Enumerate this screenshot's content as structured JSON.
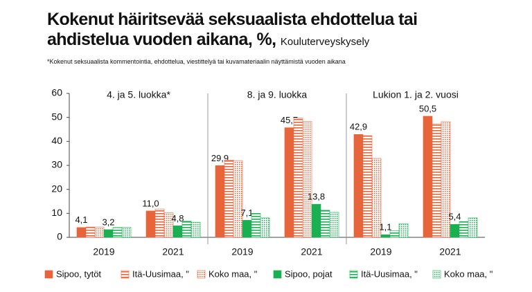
{
  "chart_data": {
    "type": "bar",
    "title": "Kokenut häiritsevää seksuaalista ehdottelua tai ahdistelua vuoden aikana, %,",
    "source": "Kouluterveyskysely",
    "note": "*Kokenut seksuaalista kommentointia, ehdottelua, viestittelyä tai kuvamateriaalin näyttämistä vuoden aikana",
    "groups": [
      "4. ja 5. luokka*",
      "8. ja 9. luokka",
      "Lukion 1. ja 2. vuosi"
    ],
    "categories": [
      "2019",
      "2021",
      "2019",
      "2021",
      "2019",
      "2021"
    ],
    "ylim": [
      0,
      60
    ],
    "yticks": [
      0,
      10,
      20,
      30,
      40,
      50,
      60
    ],
    "series": [
      {
        "name": "Sipoo, tytöt",
        "color": "#e8643a",
        "pattern": "solid",
        "values": [
          4.1,
          11.0,
          29.9,
          45.7,
          42.9,
          50.5
        ],
        "value_labels": [
          "4,1",
          "11,0",
          "29,9",
          "45,7",
          "42,9",
          "50,5"
        ]
      },
      {
        "name": "Itä-Uusimaa, \"",
        "color": "#e8643a",
        "pattern": "stripes",
        "values": [
          4.3,
          11.8,
          32.2,
          49.8,
          42.4,
          47.3
        ]
      },
      {
        "name": "Koko maa, \"",
        "color": "#e8643a",
        "pattern": "dots",
        "values": [
          4.3,
          10.2,
          32.0,
          48.3,
          32.9,
          48.2
        ]
      },
      {
        "name": "Sipoo, pojat",
        "color": "#1aaf50",
        "pattern": "solid",
        "values": [
          3.2,
          4.8,
          7.1,
          13.8,
          1.1,
          5.4
        ],
        "value_labels": [
          "3,2",
          "4,8",
          "7,1",
          "13,8",
          "1,1",
          "5,4"
        ]
      },
      {
        "name": "Itä-Uusimaa, \"",
        "color": "#1aaf50",
        "pattern": "stripes",
        "values": [
          4.1,
          6.8,
          10.0,
          11.3,
          2.8,
          6.6
        ]
      },
      {
        "name": "Koko maa, \"",
        "color": "#1aaf50",
        "pattern": "dots",
        "values": [
          4.2,
          6.3,
          8.1,
          10.4,
          5.7,
          8.1
        ]
      }
    ]
  }
}
